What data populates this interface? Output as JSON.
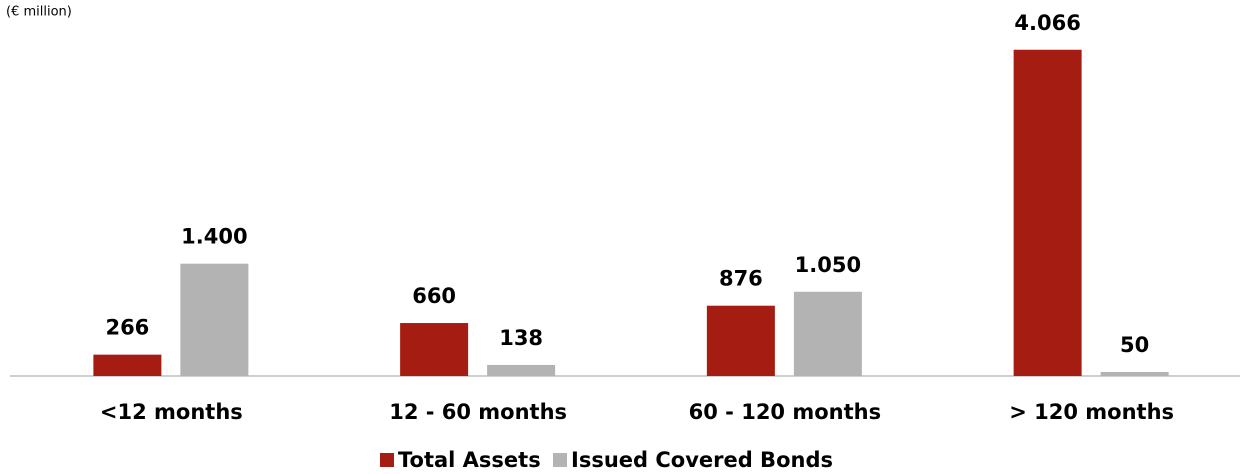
{
  "chart_data": {
    "type": "bar",
    "subtitle": "(€ million)",
    "categories": [
      "<12 months",
      "12 - 60 months",
      "60 - 120 months",
      "> 120 months"
    ],
    "series": [
      {
        "name": "Total Assets",
        "color": "#a51c12",
        "values": [
          266,
          660,
          876,
          4066
        ],
        "value_labels": [
          "266",
          "660",
          "876",
          "4.066"
        ]
      },
      {
        "name": "Issued Covered Bonds",
        "color": "#b3b3b3",
        "values": [
          1400,
          138,
          1050,
          50
        ],
        "value_labels": [
          "1.400",
          "138",
          "1.050",
          "50"
        ]
      }
    ],
    "ylim": [
      0,
      4200
    ],
    "legend": "bottom"
  }
}
